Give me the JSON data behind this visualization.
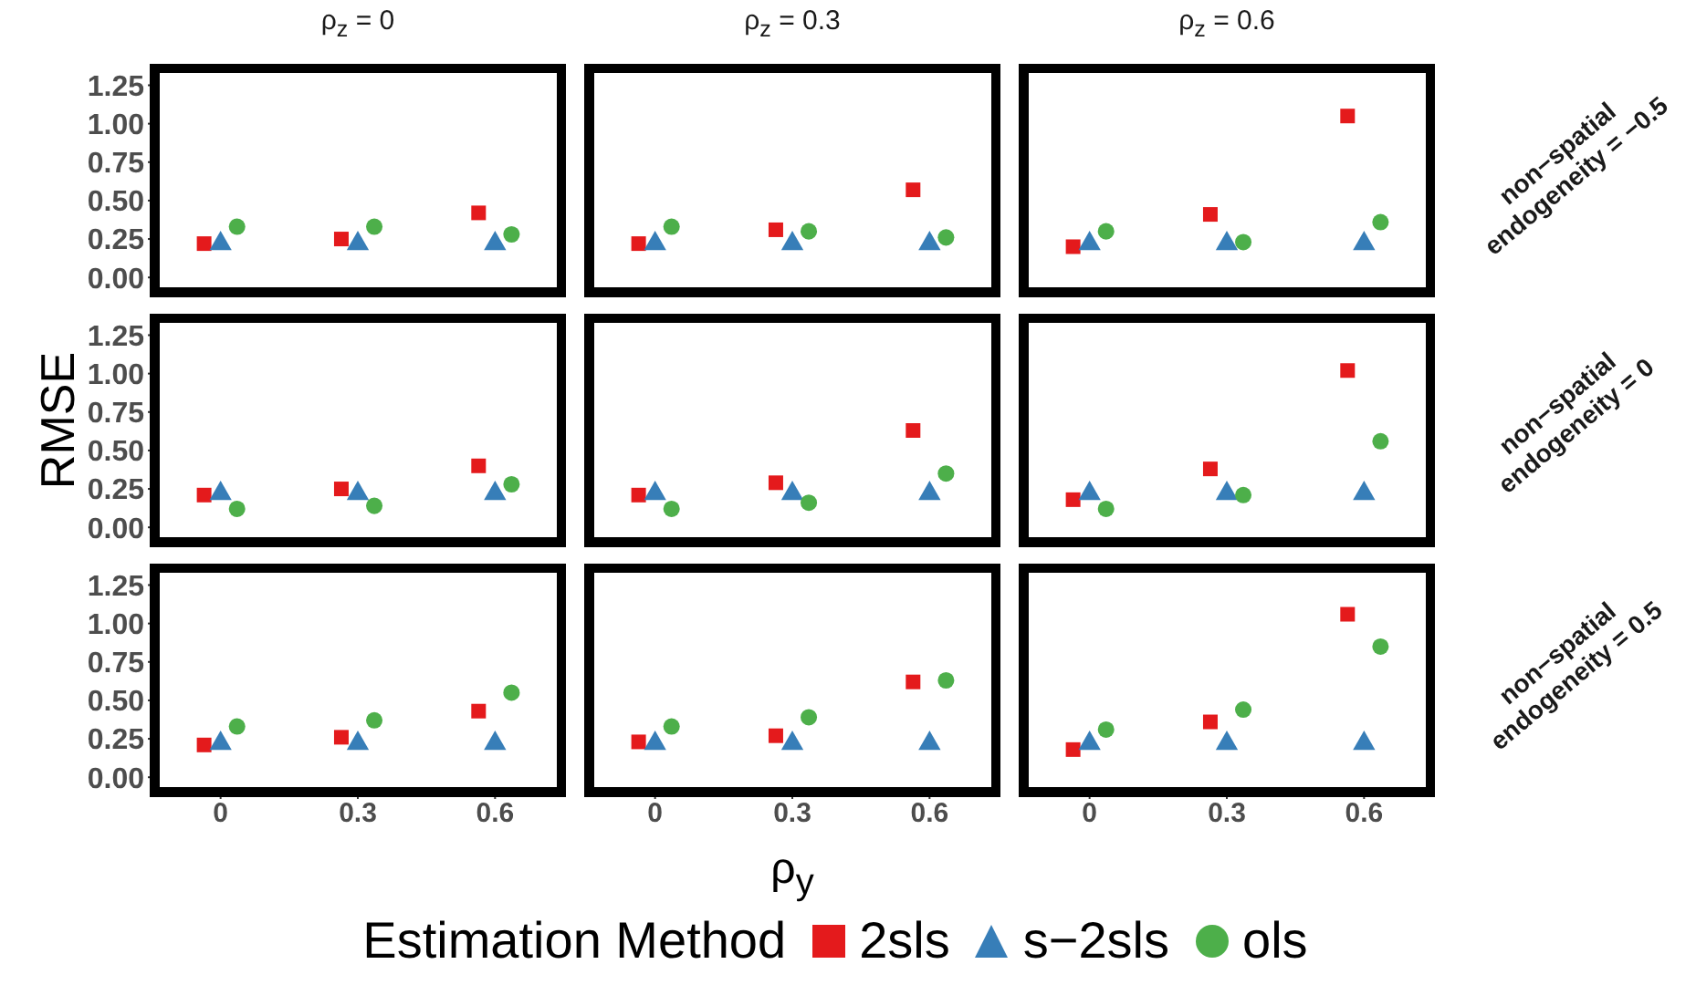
{
  "chart_data": [
    {
      "type": "scatter",
      "title": "ρ$_{z}$ = 0",
      "legend_title": "Estimation Method",
      "legend": "bottom",
      "categories": [
        "0",
        "0.3",
        "0.6"
      ],
      "ylim": [
        -0.07,
        1.33
      ],
      "yticks": [
        {
          "value": 0,
          "label": "0.00"
        },
        {
          "value": 0.25,
          "label": "0.25"
        },
        {
          "value": 0.5,
          "label": "0.50"
        },
        {
          "value": 0.75,
          "label": "0.75"
        },
        {
          "value": 1,
          "label": "1.00"
        },
        {
          "value": 1.25,
          "label": "1.25"
        }
      ],
      "tick_labels": "y",
      "series": [
        {
          "name": "2sls",
          "color": "#e41a1c",
          "marker": "square",
          "values": [
            0.22,
            0.25,
            0.42
          ]
        },
        {
          "name": "s−2sls",
          "color": "#377eb8",
          "marker": "triangle",
          "values": [
            0.22,
            0.22,
            0.22
          ]
        },
        {
          "name": "ols",
          "color": "#4daf4a",
          "marker": "circle",
          "values": [
            0.33,
            0.33,
            0.28
          ]
        }
      ]
    },
    {
      "type": "scatter",
      "title": "ρ$_{z}$ = 0.3",
      "categories": [
        "0",
        "0.3",
        "0.6"
      ],
      "ylim": [
        -0.07,
        1.33
      ],
      "tick_labels": false,
      "series": [
        {
          "color": "#e41a1c",
          "marker": "square",
          "values": [
            0.22,
            0.31,
            0.57
          ]
        },
        {
          "color": "#377eb8",
          "marker": "triangle",
          "values": [
            0.22,
            0.22,
            0.22
          ]
        },
        {
          "color": "#4daf4a",
          "marker": "circle",
          "values": [
            0.33,
            0.3,
            0.26
          ]
        }
      ]
    },
    {
      "type": "scatter",
      "title": "ρ$_{z}$ = 0.6",
      "annotations": [
        "non−spatial\nendogeneity = −0.5"
      ],
      "categories": [
        "0",
        "0.3",
        "0.6"
      ],
      "ylim": [
        -0.07,
        1.33
      ],
      "tick_labels": false,
      "series": [
        {
          "color": "#e41a1c",
          "marker": "square",
          "values": [
            0.2,
            0.41,
            1.05
          ]
        },
        {
          "color": "#377eb8",
          "marker": "triangle",
          "values": [
            0.22,
            0.22,
            0.22
          ]
        },
        {
          "color": "#4daf4a",
          "marker": "circle",
          "values": [
            0.3,
            0.23,
            0.36
          ]
        }
      ]
    },
    {
      "type": "scatter",
      "ylabel": "RMSE",
      "categories": [
        "0",
        "0.3",
        "0.6"
      ],
      "ylim": [
        -0.07,
        1.33
      ],
      "yticks": [
        {
          "value": 0,
          "label": "0.00"
        },
        {
          "value": 0.25,
          "label": "0.25"
        },
        {
          "value": 0.5,
          "label": "0.50"
        },
        {
          "value": 0.75,
          "label": "0.75"
        },
        {
          "value": 1,
          "label": "1.00"
        },
        {
          "value": 1.25,
          "label": "1.25"
        }
      ],
      "tick_labels": "y",
      "series": [
        {
          "color": "#e41a1c",
          "marker": "square",
          "values": [
            0.21,
            0.25,
            0.4
          ]
        },
        {
          "color": "#377eb8",
          "marker": "triangle",
          "values": [
            0.22,
            0.22,
            0.22
          ]
        },
        {
          "color": "#4daf4a",
          "marker": "circle",
          "values": [
            0.12,
            0.14,
            0.28
          ]
        }
      ]
    },
    {
      "type": "scatter",
      "categories": [
        "0",
        "0.3",
        "0.6"
      ],
      "ylim": [
        -0.07,
        1.33
      ],
      "tick_labels": false,
      "series": [
        {
          "color": "#e41a1c",
          "marker": "square",
          "values": [
            0.21,
            0.29,
            0.63
          ]
        },
        {
          "color": "#377eb8",
          "marker": "triangle",
          "values": [
            0.22,
            0.22,
            0.22
          ]
        },
        {
          "color": "#4daf4a",
          "marker": "circle",
          "values": [
            0.12,
            0.16,
            0.35
          ]
        }
      ]
    },
    {
      "type": "scatter",
      "annotations": [
        "non−spatial\nendogeneity = 0"
      ],
      "categories": [
        "0",
        "0.3",
        "0.6"
      ],
      "ylim": [
        -0.07,
        1.33
      ],
      "tick_labels": false,
      "series": [
        {
          "color": "#e41a1c",
          "marker": "square",
          "values": [
            0.18,
            0.38,
            1.02
          ]
        },
        {
          "color": "#377eb8",
          "marker": "triangle",
          "values": [
            0.22,
            0.22,
            0.22
          ]
        },
        {
          "color": "#4daf4a",
          "marker": "circle",
          "values": [
            0.12,
            0.21,
            0.56
          ]
        }
      ]
    },
    {
      "type": "scatter",
      "categories": [
        "0",
        "0.3",
        "0.6"
      ],
      "ylim": [
        -0.07,
        1.33
      ],
      "yticks": [
        {
          "value": 0,
          "label": "0.00"
        },
        {
          "value": 0.25,
          "label": "0.25"
        },
        {
          "value": 0.5,
          "label": "0.50"
        },
        {
          "value": 0.75,
          "label": "0.75"
        },
        {
          "value": 1,
          "label": "1.00"
        },
        {
          "value": 1.25,
          "label": "1.25"
        }
      ],
      "series": [
        {
          "color": "#e41a1c",
          "marker": "square",
          "values": [
            0.21,
            0.26,
            0.43
          ]
        },
        {
          "color": "#377eb8",
          "marker": "triangle",
          "values": [
            0.22,
            0.22,
            0.22
          ]
        },
        {
          "color": "#4daf4a",
          "marker": "circle",
          "values": [
            0.33,
            0.37,
            0.55
          ]
        }
      ]
    },
    {
      "type": "scatter",
      "xlabel": "ρ$_{y}$",
      "categories": [
        "0",
        "0.3",
        "0.6"
      ],
      "ylim": [
        -0.07,
        1.33
      ],
      "tick_labels": "x",
      "series": [
        {
          "color": "#e41a1c",
          "marker": "square",
          "values": [
            0.23,
            0.27,
            0.62
          ]
        },
        {
          "color": "#377eb8",
          "marker": "triangle",
          "values": [
            0.22,
            0.22,
            0.22
          ]
        },
        {
          "color": "#4daf4a",
          "marker": "circle",
          "values": [
            0.33,
            0.39,
            0.63
          ]
        }
      ]
    },
    {
      "type": "scatter",
      "annotations": [
        "non−spatial\nendogeneity = 0.5"
      ],
      "categories": [
        "0",
        "0.3",
        "0.6"
      ],
      "ylim": [
        -0.07,
        1.33
      ],
      "tick_labels": "x",
      "series": [
        {
          "color": "#e41a1c",
          "marker": "square",
          "values": [
            0.18,
            0.36,
            1.06
          ]
        },
        {
          "color": "#377eb8",
          "marker": "triangle",
          "values": [
            0.22,
            0.22,
            0.22
          ]
        },
        {
          "color": "#4daf4a",
          "marker": "circle",
          "values": [
            0.31,
            0.44,
            0.85
          ]
        }
      ]
    }
  ]
}
